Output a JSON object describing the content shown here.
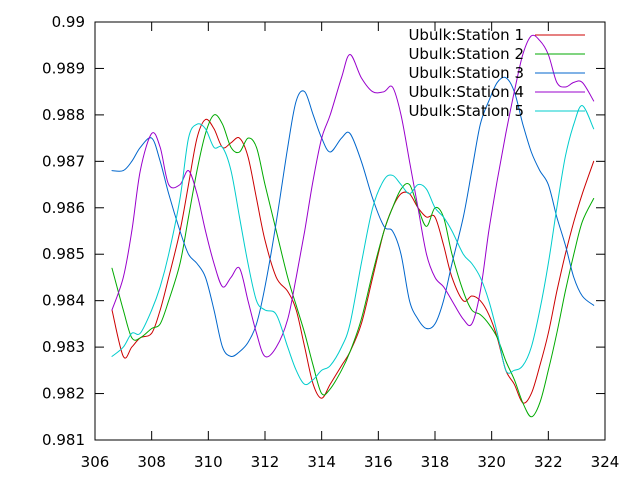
{
  "chart_data": {
    "type": "line",
    "title": "",
    "xlabel": "",
    "ylabel": "",
    "xlim": [
      306,
      324
    ],
    "ylim": [
      0.981,
      0.99
    ],
    "grid": false,
    "legend_position": "top-right",
    "x_ticks": [
      306,
      308,
      310,
      312,
      314,
      316,
      318,
      320,
      322,
      324
    ],
    "x_tick_labels": [
      "306",
      "308",
      "310",
      "312",
      "314",
      "316",
      "318",
      "320",
      "322",
      "324"
    ],
    "y_ticks": [
      0.981,
      0.982,
      0.983,
      0.984,
      0.985,
      0.986,
      0.987,
      0.988,
      0.989,
      0.99
    ],
    "y_tick_labels": [
      "0.981",
      "0.982",
      "0.983",
      "0.984",
      "0.985",
      "0.986",
      "0.987",
      "0.988",
      "0.989",
      "0.99"
    ],
    "series": [
      {
        "name": "Ubulk:Station 1",
        "color": "#cc0000",
        "x": [
          306.6,
          307.0,
          307.3,
          307.6,
          308.0,
          308.3,
          308.6,
          309.0,
          309.3,
          309.6,
          309.9,
          310.2,
          310.5,
          310.8,
          311.1,
          311.4,
          311.7,
          312.0,
          312.4,
          312.8,
          313.1,
          313.4,
          313.7,
          314.0,
          314.3,
          314.7,
          315.0,
          315.4,
          315.8,
          316.2,
          316.5,
          316.8,
          317.1,
          317.4,
          317.7,
          318.0,
          318.3,
          318.6,
          319.0,
          319.3,
          319.6,
          319.9,
          320.2,
          320.5,
          320.8,
          321.1,
          321.4,
          321.7,
          322.0,
          322.3,
          322.6,
          322.9,
          323.2,
          323.6
        ],
        "y": [
          0.9838,
          0.9828,
          0.983,
          0.9832,
          0.9833,
          0.9838,
          0.9845,
          0.9855,
          0.9865,
          0.9875,
          0.9879,
          0.9877,
          0.9873,
          0.9874,
          0.9875,
          0.9871,
          0.9862,
          0.9853,
          0.9845,
          0.9842,
          0.9838,
          0.983,
          0.9822,
          0.9819,
          0.9822,
          0.9826,
          0.9829,
          0.9835,
          0.9845,
          0.9855,
          0.986,
          0.9863,
          0.9863,
          0.986,
          0.9858,
          0.9858,
          0.9852,
          0.9845,
          0.984,
          0.9841,
          0.984,
          0.9837,
          0.9832,
          0.9825,
          0.9822,
          0.9818,
          0.982,
          0.9826,
          0.9833,
          0.9842,
          0.985,
          0.9857,
          0.9863,
          0.987
        ]
      },
      {
        "name": "Ubulk:Station 2",
        "color": "#00aa00",
        "x": [
          306.6,
          307.0,
          307.3,
          307.6,
          308.0,
          308.3,
          308.6,
          309.0,
          309.3,
          309.6,
          309.9,
          310.2,
          310.5,
          310.8,
          311.1,
          311.4,
          311.7,
          312.0,
          312.4,
          312.8,
          313.1,
          313.4,
          313.7,
          314.0,
          314.3,
          314.7,
          315.0,
          315.4,
          315.8,
          316.2,
          316.5,
          316.8,
          317.1,
          317.4,
          317.7,
          318.0,
          318.3,
          318.6,
          319.0,
          319.3,
          319.6,
          319.9,
          320.2,
          320.5,
          320.8,
          321.1,
          321.4,
          321.7,
          322.0,
          322.3,
          322.6,
          322.9,
          323.2,
          323.6
        ],
        "y": [
          0.9847,
          0.9838,
          0.9832,
          0.9832,
          0.9834,
          0.9835,
          0.984,
          0.9848,
          0.9858,
          0.9868,
          0.9876,
          0.988,
          0.9878,
          0.9873,
          0.9872,
          0.9875,
          0.9873,
          0.9865,
          0.9855,
          0.9845,
          0.9839,
          0.9833,
          0.9826,
          0.982,
          0.9821,
          0.9825,
          0.9829,
          0.9836,
          0.9846,
          0.9855,
          0.986,
          0.9864,
          0.9865,
          0.986,
          0.9856,
          0.986,
          0.9858,
          0.985,
          0.9842,
          0.9838,
          0.9837,
          0.9835,
          0.9832,
          0.9827,
          0.9823,
          0.9818,
          0.9815,
          0.9818,
          0.9825,
          0.9833,
          0.9842,
          0.985,
          0.9857,
          0.9862
        ]
      },
      {
        "name": "Ubulk:Station 3",
        "color": "#0066cc",
        "x": [
          306.6,
          307.0,
          307.3,
          307.6,
          308.0,
          308.3,
          308.6,
          309.0,
          309.3,
          309.6,
          309.9,
          310.2,
          310.5,
          310.8,
          311.1,
          311.4,
          311.7,
          312.0,
          312.4,
          312.8,
          313.1,
          313.4,
          313.7,
          314.0,
          314.3,
          314.7,
          315.0,
          315.4,
          315.8,
          316.2,
          316.5,
          316.8,
          317.1,
          317.4,
          317.7,
          318.0,
          318.3,
          318.6,
          319.0,
          319.3,
          319.6,
          319.9,
          320.2,
          320.5,
          320.8,
          321.1,
          321.4,
          321.7,
          322.0,
          322.3,
          322.6,
          322.9,
          323.2,
          323.6
        ],
        "y": [
          0.9868,
          0.9868,
          0.987,
          0.9873,
          0.9875,
          0.987,
          0.9863,
          0.9855,
          0.985,
          0.9848,
          0.9845,
          0.9838,
          0.983,
          0.9828,
          0.9829,
          0.9831,
          0.9835,
          0.9843,
          0.9857,
          0.9873,
          0.9883,
          0.9885,
          0.988,
          0.9875,
          0.9872,
          0.9875,
          0.9876,
          0.987,
          0.9862,
          0.9856,
          0.9855,
          0.985,
          0.984,
          0.9836,
          0.9834,
          0.9835,
          0.984,
          0.9848,
          0.9858,
          0.9868,
          0.9878,
          0.9883,
          0.9887,
          0.9888,
          0.9885,
          0.9878,
          0.9872,
          0.9868,
          0.9865,
          0.9858,
          0.9852,
          0.9845,
          0.9841,
          0.9839
        ]
      },
      {
        "name": "Ubulk:Station 4",
        "color": "#9900cc",
        "x": [
          306.6,
          307.0,
          307.3,
          307.6,
          308.0,
          308.3,
          308.6,
          309.0,
          309.3,
          309.6,
          309.9,
          310.2,
          310.5,
          310.8,
          311.1,
          311.4,
          311.7,
          312.0,
          312.4,
          312.8,
          313.1,
          313.4,
          313.7,
          314.0,
          314.3,
          314.7,
          315.0,
          315.4,
          315.8,
          316.2,
          316.5,
          316.8,
          317.1,
          317.4,
          317.7,
          318.0,
          318.3,
          318.6,
          319.0,
          319.3,
          319.6,
          319.9,
          320.2,
          320.5,
          320.8,
          321.1,
          321.4,
          321.7,
          322.0,
          322.3,
          322.6,
          322.9,
          323.2,
          323.6
        ],
        "y": [
          0.9838,
          0.9845,
          0.9855,
          0.9868,
          0.9876,
          0.9873,
          0.9865,
          0.9865,
          0.9868,
          0.9863,
          0.9855,
          0.9848,
          0.9843,
          0.9845,
          0.9847,
          0.984,
          0.9833,
          0.9828,
          0.983,
          0.9836,
          0.9845,
          0.9855,
          0.9866,
          0.9875,
          0.988,
          0.9888,
          0.9893,
          0.9888,
          0.9885,
          0.9885,
          0.9886,
          0.988,
          0.987,
          0.986,
          0.985,
          0.9845,
          0.9843,
          0.984,
          0.9836,
          0.9835,
          0.9842,
          0.9855,
          0.9866,
          0.9876,
          0.9885,
          0.9893,
          0.9897,
          0.9896,
          0.9893,
          0.9887,
          0.9886,
          0.9887,
          0.9887,
          0.9883
        ]
      },
      {
        "name": "Ubulk:Station 5",
        "color": "#00cccc",
        "x": [
          306.6,
          307.0,
          307.3,
          307.6,
          308.0,
          308.3,
          308.6,
          309.0,
          309.3,
          309.6,
          309.9,
          310.2,
          310.5,
          310.8,
          311.1,
          311.4,
          311.7,
          312.0,
          312.4,
          312.8,
          313.1,
          313.4,
          313.7,
          314.0,
          314.3,
          314.7,
          315.0,
          315.4,
          315.8,
          316.2,
          316.5,
          316.8,
          317.1,
          317.4,
          317.7,
          318.0,
          318.3,
          318.6,
          319.0,
          319.3,
          319.6,
          319.9,
          320.2,
          320.5,
          320.8,
          321.1,
          321.4,
          321.7,
          322.0,
          322.3,
          322.6,
          322.9,
          323.2,
          323.6
        ],
        "y": [
          0.9828,
          0.983,
          0.9833,
          0.9833,
          0.9838,
          0.9843,
          0.985,
          0.9862,
          0.9875,
          0.9878,
          0.9877,
          0.9873,
          0.9873,
          0.9868,
          0.9858,
          0.9848,
          0.984,
          0.9838,
          0.9837,
          0.983,
          0.9825,
          0.9822,
          0.9823,
          0.9825,
          0.9826,
          0.983,
          0.9835,
          0.9848,
          0.986,
          0.9866,
          0.9867,
          0.9865,
          0.9863,
          0.9865,
          0.9864,
          0.986,
          0.9858,
          0.9855,
          0.985,
          0.9848,
          0.9845,
          0.984,
          0.9833,
          0.9825,
          0.9825,
          0.9826,
          0.983,
          0.9838,
          0.9848,
          0.986,
          0.9871,
          0.9878,
          0.9882,
          0.9877
        ]
      }
    ]
  }
}
